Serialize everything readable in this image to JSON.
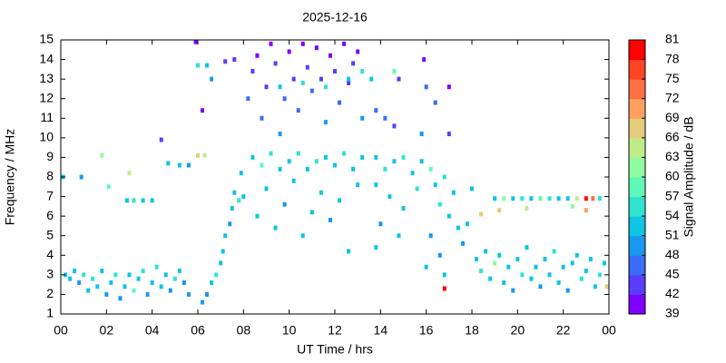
{
  "chart_data": {
    "type": "scatter",
    "title": "2025-12-16",
    "xlabel": "UT Time / hrs",
    "ylabel": "Frequency / MHz",
    "colorbar_label": "Signal Amplitude / dB",
    "xlim": [
      0,
      24
    ],
    "xticks": [
      {
        "value": 0,
        "label": "00"
      },
      {
        "value": 2,
        "label": "02"
      },
      {
        "value": 4,
        "label": "04"
      },
      {
        "value": 6,
        "label": "06"
      },
      {
        "value": 8,
        "label": "08"
      },
      10,
      12,
      14,
      16,
      18,
      20,
      22,
      {
        "value": 24,
        "label": "00"
      }
    ],
    "ylim": [
      1,
      15
    ],
    "yticks": [
      1,
      2,
      3,
      4,
      5,
      6,
      7,
      8,
      9,
      10,
      11,
      12,
      13,
      14,
      15
    ],
    "clim": [
      39,
      81
    ],
    "cticks": [
      39,
      42,
      45,
      48,
      51,
      54,
      57,
      60,
      63,
      66,
      69,
      72,
      75,
      78,
      81
    ],
    "colormap": [
      "#8000ff",
      "#5a3cfc",
      "#3a6cf8",
      "#1a98f0",
      "#10c4e4",
      "#30e4d0",
      "#60f8b8",
      "#90fca0",
      "#c0ec88",
      "#e4cc7c",
      "#ffa060",
      "#ff7044",
      "#ff4424",
      "#ff0000"
    ],
    "x": [
      0.2,
      0.4,
      0.6,
      0.8,
      1.0,
      1.2,
      1.4,
      1.6,
      1.8,
      2.0,
      2.2,
      2.4,
      2.6,
      2.8,
      3.0,
      3.2,
      3.4,
      3.6,
      3.8,
      4.0,
      4.2,
      4.4,
      4.6,
      4.8,
      5.0,
      5.2,
      5.4,
      5.6,
      0.1,
      0.9,
      2.9,
      3.2,
      3.6,
      4.0,
      4.4,
      4.7,
      5.2,
      5.6,
      6.0,
      6.3,
      6.0,
      6.4,
      6.6,
      6.2,
      5.9,
      1.8,
      3.0,
      2.1,
      6.6,
      6.8,
      7.0,
      7.1,
      7.2,
      7.4,
      7.5,
      7.6,
      7.8,
      7.9,
      7.2,
      7.6,
      6.4,
      6.2,
      8.2,
      8.4,
      8.6,
      8.8,
      9.0,
      9.2,
      9.4,
      9.6,
      9.8,
      10.0,
      10.2,
      10.4,
      10.6,
      10.8,
      11.0,
      11.2,
      11.4,
      11.6,
      11.8,
      12.0,
      12.2,
      12.4,
      12.6,
      12.8,
      13.0,
      13.2,
      8.4,
      8.8,
      9.2,
      9.6,
      10.0,
      10.4,
      10.8,
      11.2,
      11.6,
      12.0,
      12.4,
      12.8,
      13.2,
      8.0,
      8.6,
      9.0,
      9.4,
      9.8,
      10.2,
      10.6,
      11.0,
      11.4,
      11.8,
      12.2,
      12.6,
      13.0,
      9.6,
      10.6,
      11.6,
      12.6,
      13.2,
      13.6,
      13.8,
      14.2,
      14.6,
      14.8,
      13.8,
      14.2,
      14.6,
      15.0,
      15.4,
      15.8,
      13.8,
      14.4,
      15.0,
      15.6,
      14.0,
      14.8,
      13.8,
      16.0,
      15.8,
      15.9,
      14.6,
      16.2,
      16.4,
      16.6,
      16.8,
      17.0,
      17.2,
      17.4,
      16.2,
      16.6,
      16.0,
      16.8,
      17.6,
      17.8,
      16.8,
      17.0,
      16.4,
      17.0,
      18.0,
      18.2,
      18.4,
      18.6,
      18.8,
      19.0,
      19.2,
      19.4,
      19.6,
      19.8,
      20.0,
      20.2,
      20.4,
      20.6,
      20.8,
      21.0,
      21.2,
      21.4,
      21.6,
      21.8,
      22.0,
      22.2,
      22.4,
      22.6,
      22.8,
      23.0,
      23.2,
      23.4,
      23.6,
      23.8,
      23.9,
      19.0,
      19.4,
      19.8,
      20.2,
      20.6,
      21.0,
      21.4,
      21.8,
      22.2,
      22.6,
      23.0,
      23.3,
      23.6,
      19.2,
      20.4,
      22.4,
      23.0,
      18.4
    ],
    "y": [
      3.0,
      2.8,
      3.2,
      2.6,
      3.0,
      2.2,
      2.8,
      2.4,
      3.2,
      2.0,
      2.6,
      3.0,
      1.8,
      2.4,
      3.0,
      2.2,
      2.8,
      3.2,
      2.0,
      2.6,
      3.4,
      2.4,
      3.0,
      2.2,
      2.8,
      3.2,
      2.6,
      2.0,
      8.0,
      8.0,
      6.8,
      6.8,
      6.8,
      6.8,
      9.9,
      8.7,
      8.6,
      8.6,
      9.1,
      9.1,
      13.7,
      13.7,
      13.0,
      11.4,
      14.9,
      9.1,
      8.2,
      7.5,
      2.6,
      3.0,
      3.6,
      4.2,
      5.0,
      5.6,
      6.4,
      7.2,
      6.8,
      8.2,
      13.9,
      14.0,
      2.0,
      1.6,
      12.0,
      13.4,
      14.2,
      11.0,
      12.6,
      14.8,
      13.8,
      10.2,
      12.0,
      14.4,
      13.0,
      11.4,
      14.8,
      13.6,
      12.4,
      14.6,
      13.0,
      10.8,
      14.2,
      13.4,
      11.8,
      14.8,
      12.8,
      13.8,
      14.4,
      11.0,
      9.0,
      8.6,
      9.2,
      8.4,
      8.8,
      9.2,
      8.4,
      8.8,
      9.0,
      8.6,
      9.2,
      8.4,
      9.0,
      7.0,
      6.0,
      7.4,
      5.4,
      6.6,
      7.8,
      5.0,
      6.2,
      7.2,
      5.8,
      6.8,
      4.2,
      7.6,
      12.6,
      12.8,
      12.6,
      13.0,
      13.4,
      13.0,
      11.4,
      11.0,
      10.6,
      13.0,
      9.0,
      8.4,
      8.8,
      9.0,
      8.2,
      8.8,
      7.6,
      7.0,
      6.4,
      7.4,
      5.6,
      5.0,
      4.4,
      12.6,
      10.2,
      14.0,
      13.4,
      8.4,
      7.6,
      6.6,
      8.0,
      6.0,
      7.2,
      5.4,
      5.0,
      4.0,
      3.4,
      3.0,
      4.6,
      5.6,
      2.3,
      10.2,
      11.8,
      12.6,
      7.4,
      3.8,
      3.2,
      4.2,
      2.8,
      3.6,
      4.0,
      2.6,
      3.4,
      2.2,
      3.8,
      3.0,
      4.4,
      2.8,
      3.4,
      2.4,
      3.8,
      3.0,
      4.2,
      2.6,
      3.4,
      2.2,
      3.6,
      4.0,
      2.8,
      3.2,
      3.8,
      2.4,
      3.0,
      3.6,
      2.4,
      6.9,
      6.9,
      6.9,
      6.9,
      6.9,
      6.9,
      6.9,
      6.9,
      6.9,
      6.9,
      6.9,
      6.9,
      6.9,
      6.3,
      6.4,
      6.5,
      6.3,
      6.1
    ],
    "values": [
      51,
      52,
      53,
      50,
      54,
      52,
      56,
      51,
      53,
      50,
      52,
      55,
      49,
      53,
      51,
      58,
      52,
      54,
      50,
      52,
      56,
      53,
      51,
      50,
      54,
      52,
      49,
      48,
      51,
      49,
      53,
      54,
      52,
      53,
      42,
      52,
      53,
      50,
      66,
      63,
      55,
      52,
      49,
      40,
      40,
      62,
      64,
      58,
      52,
      54,
      53,
      51,
      52,
      50,
      53,
      51,
      54,
      52,
      44,
      42,
      49,
      48,
      45,
      42,
      40,
      47,
      44,
      40,
      42,
      48,
      46,
      41,
      43,
      47,
      40,
      42,
      45,
      41,
      44,
      48,
      40,
      42,
      46,
      41,
      44,
      43,
      40,
      48,
      53,
      58,
      55,
      53,
      52,
      54,
      53,
      56,
      52,
      53,
      54,
      52,
      53,
      52,
      53,
      51,
      52,
      50,
      53,
      52,
      51,
      53,
      50,
      52,
      51,
      53,
      52,
      54,
      55,
      53,
      56,
      52,
      46,
      45,
      44,
      42,
      53,
      55,
      52,
      54,
      53,
      51,
      52,
      53,
      51,
      54,
      50,
      52,
      51,
      45,
      48,
      41,
      58,
      57,
      52,
      54,
      56,
      52,
      51,
      53,
      50,
      49,
      52,
      51,
      50,
      52,
      78,
      44,
      45,
      41,
      53,
      52,
      54,
      51,
      53,
      60,
      52,
      51,
      53,
      50,
      52,
      54,
      51,
      53,
      52,
      49,
      51,
      53,
      55,
      52,
      51,
      50,
      53,
      52,
      54,
      51,
      53,
      52,
      55,
      51,
      66,
      53,
      60,
      52,
      55,
      51,
      58,
      54,
      52,
      53,
      63,
      78,
      72,
      54,
      66,
      64,
      60,
      70,
      66
    ]
  }
}
